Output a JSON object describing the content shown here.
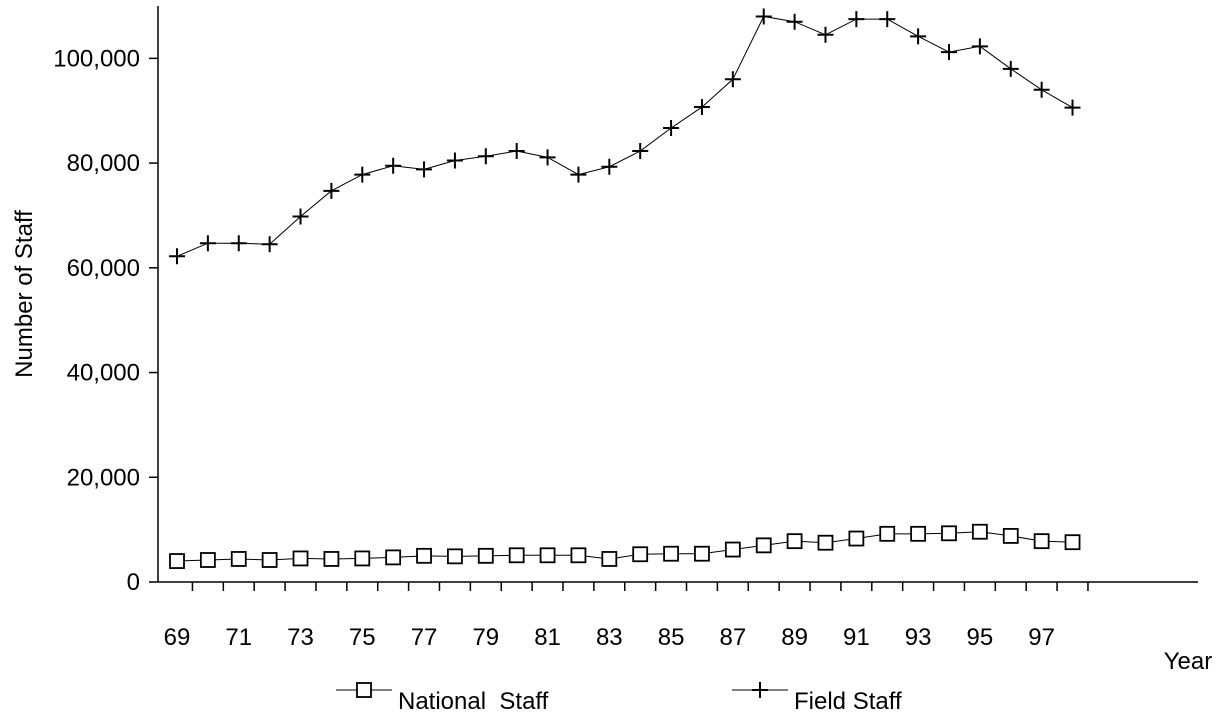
{
  "chart_data": {
    "type": "line",
    "title": "",
    "xlabel": "Year",
    "ylabel": "Number of Staff",
    "x": [
      "69",
      "70",
      "71",
      "72",
      "73",
      "74",
      "75",
      "76",
      "77",
      "78",
      "79",
      "80",
      "81",
      "82",
      "83",
      "84",
      "85",
      "86",
      "87",
      "88",
      "89",
      "90",
      "91",
      "92",
      "93",
      "94",
      "95",
      "96",
      "97",
      "98"
    ],
    "x_tick_labels": [
      "69",
      "71",
      "73",
      "75",
      "77",
      "79",
      "81",
      "83",
      "85",
      "87",
      "89",
      "91",
      "93",
      "95",
      "97"
    ],
    "y_tick_labels": [
      "0",
      "20,000",
      "40,000",
      "60,000",
      "80,000",
      "100,000"
    ],
    "ylim": [
      0,
      110000
    ],
    "grid": false,
    "legend_position": "bottom",
    "series": [
      {
        "name": "National  Staff",
        "marker": "square",
        "values": [
          4000,
          4200,
          4400,
          4200,
          4500,
          4400,
          4500,
          4700,
          5000,
          4900,
          5000,
          5100,
          5100,
          5100,
          4400,
          5300,
          5400,
          5400,
          6200,
          7000,
          7800,
          7500,
          8300,
          9200,
          9200,
          9300,
          9600,
          8800,
          7800,
          7600
        ]
      },
      {
        "name": "Field Staff",
        "marker": "plus",
        "values": [
          62200,
          64700,
          64700,
          64500,
          69800,
          74700,
          77800,
          79500,
          78800,
          80500,
          81300,
          82300,
          81100,
          77800,
          79300,
          82300,
          86700,
          90700,
          96000,
          108000,
          107000,
          104500,
          107500,
          107500,
          104200,
          101200,
          102300,
          98000,
          94000,
          90600
        ]
      }
    ]
  }
}
